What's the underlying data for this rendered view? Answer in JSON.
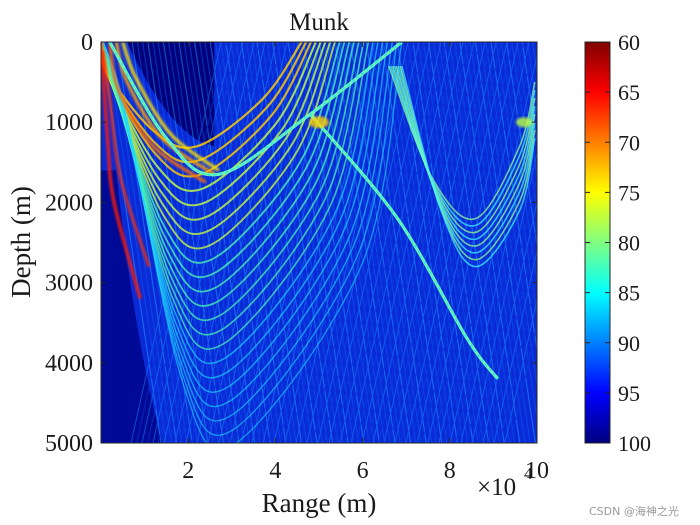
{
  "chart_data": {
    "type": "heatmap",
    "title": "Munk",
    "xlabel": "Range (m)",
    "ylabel": "Depth (m)",
    "x_multiplier": "×10",
    "x_multiplier_exponent": "4",
    "xlim": [
      0,
      10
    ],
    "x_ticks": [
      2,
      4,
      6,
      8,
      10
    ],
    "x_tick_labels": [
      "2",
      "4",
      "6",
      "8",
      "10"
    ],
    "ylim": [
      0,
      5000
    ],
    "y_ticks": [
      0,
      1000,
      2000,
      3000,
      4000,
      5000
    ],
    "y_tick_labels": [
      "0",
      "1000",
      "2000",
      "3000",
      "4000",
      "5000"
    ],
    "y_direction": "reversed",
    "colormap": "jet",
    "colorbar": {
      "range": [
        60,
        100
      ],
      "direction": "reversed",
      "ticks": [
        60,
        65,
        70,
        75,
        80,
        85,
        90,
        95,
        100
      ],
      "tick_labels": [
        "60",
        "65",
        "70",
        "75",
        "80",
        "85",
        "90",
        "95",
        "100"
      ]
    },
    "features": [
      {
        "name": "direct-path-bundle",
        "description": "High-intensity convergence band near source"
      },
      {
        "name": "convergence-zone-ray",
        "points": [
          [
            0.2,
            0
          ],
          [
            1.5,
            1200
          ],
          [
            2.7,
            1650
          ],
          [
            4.8,
            900
          ],
          [
            6.9,
            0
          ]
        ]
      },
      {
        "name": "reflected-ray",
        "points": [
          [
            4.8,
            900
          ],
          [
            6.8,
            2200
          ],
          [
            8.4,
            3700
          ],
          [
            9.1,
            4200
          ]
        ]
      }
    ]
  },
  "watermark": "CSDN @海神之光"
}
